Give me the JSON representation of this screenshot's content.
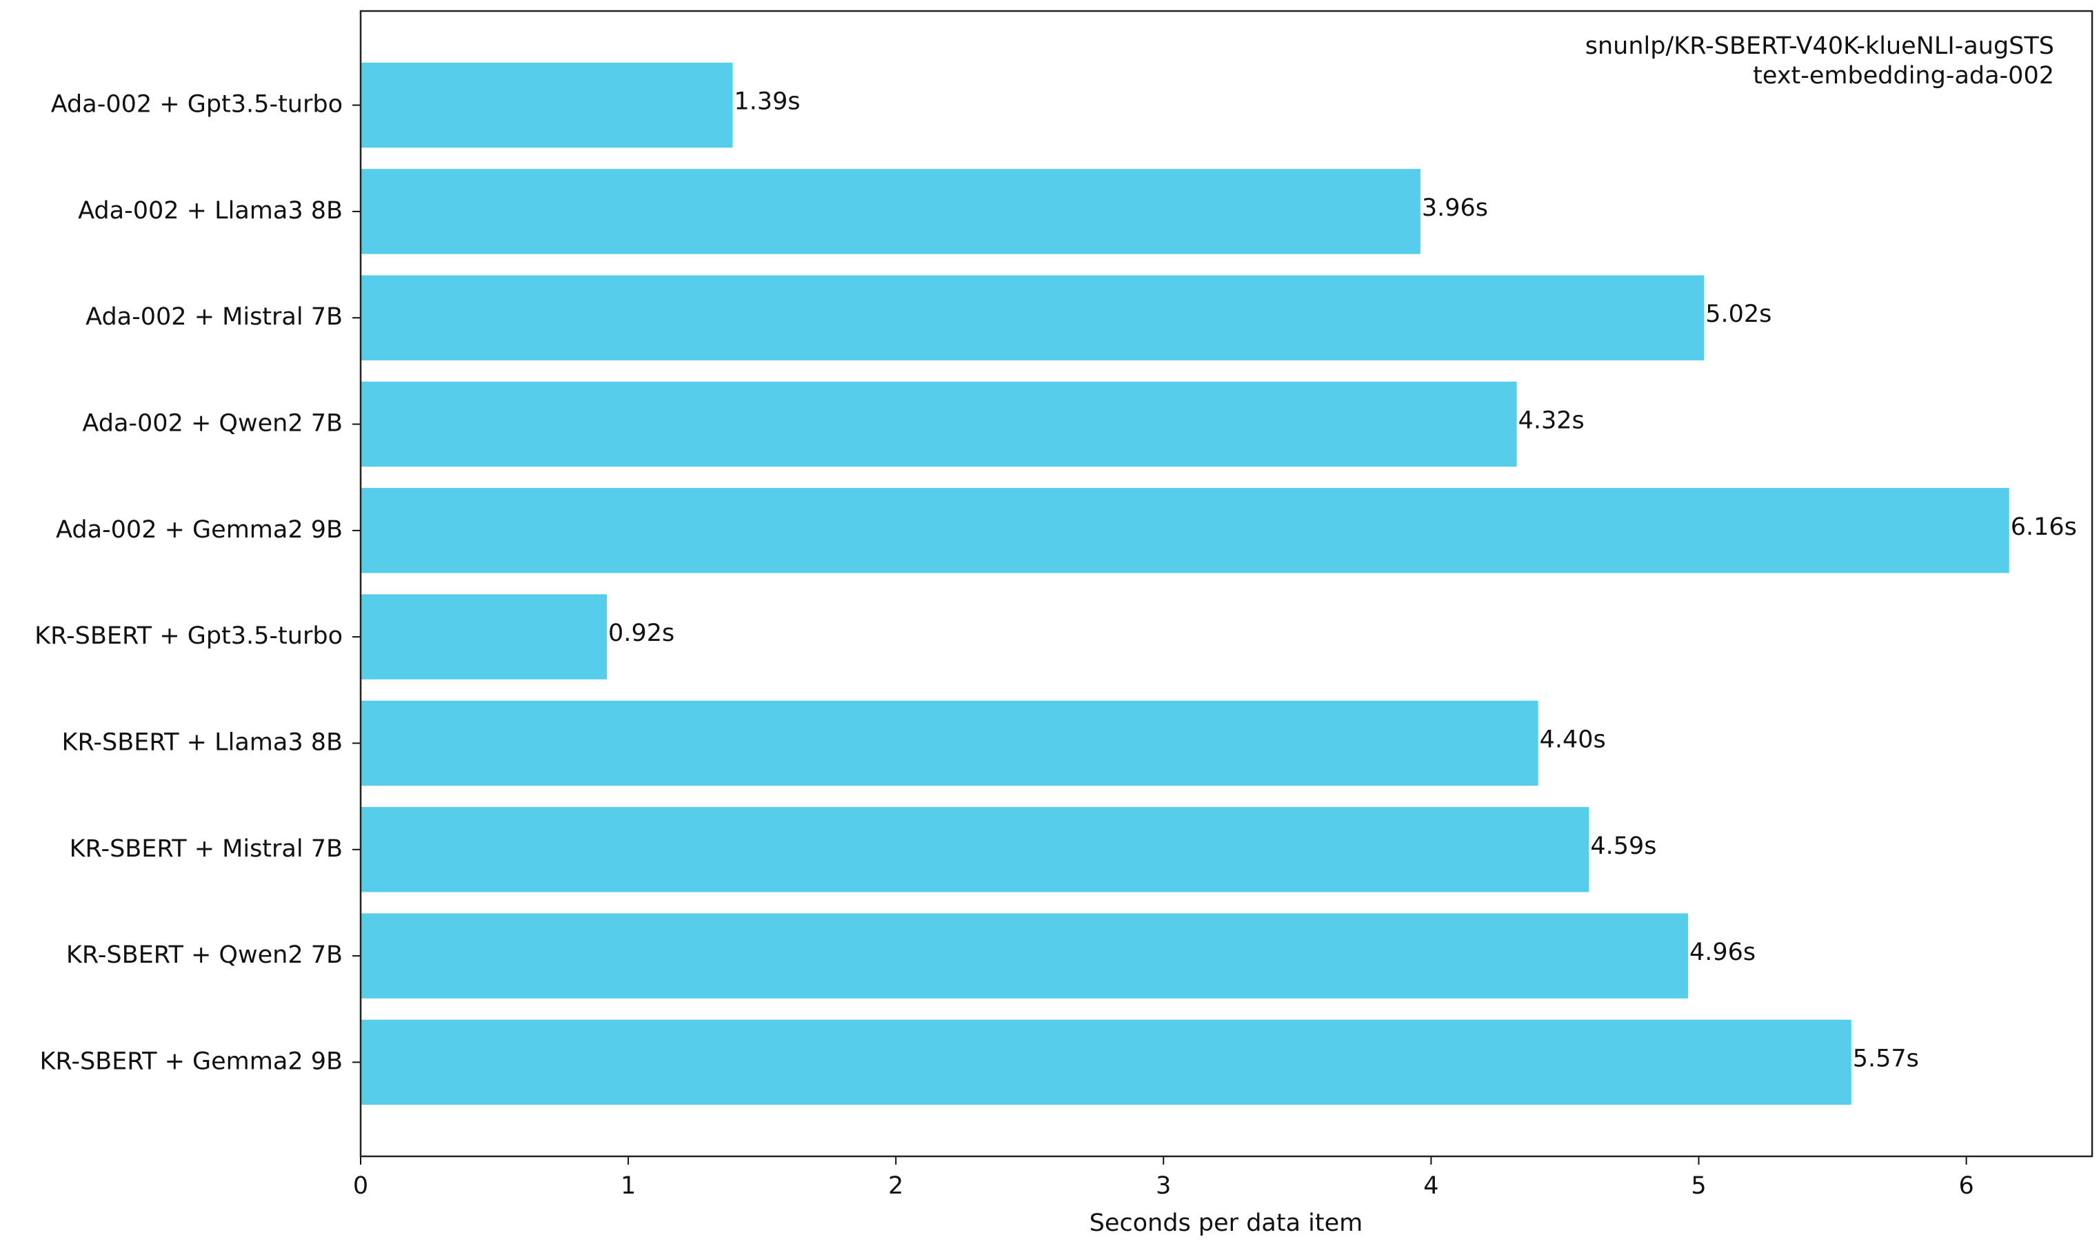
{
  "chart_data": {
    "type": "barh",
    "annotations": [
      "snunlp/KR-SBERT-V40K-klueNLI-augSTS",
      "text-embedding-ada-002"
    ],
    "xlabel": "Seconds per data item",
    "categories": [
      "Ada-002 + Gpt3.5-turbo",
      "Ada-002 + Llama3 8B",
      "Ada-002 + Mistral 7B",
      "Ada-002 + Qwen2 7B",
      "Ada-002 + Gemma2 9B",
      "KR-SBERT + Gpt3.5-turbo",
      "KR-SBERT + Llama3 8B",
      "KR-SBERT + Mistral 7B",
      "KR-SBERT + Qwen2 7B",
      "KR-SBERT + Gemma2 9B"
    ],
    "values": [
      1.39,
      3.96,
      5.02,
      4.32,
      6.16,
      0.92,
      4.4,
      4.59,
      4.96,
      5.57
    ],
    "value_labels": [
      "1.39s",
      "3.96s",
      "5.02s",
      "4.32s",
      "6.16s",
      "0.92s",
      "4.40s",
      "4.59s",
      "4.96s",
      "5.57s"
    ],
    "color": "#56cdeb",
    "xlim": [
      0,
      6.47
    ],
    "xticks": [
      0,
      1,
      2,
      3,
      4,
      5,
      6
    ],
    "grid": false
  }
}
